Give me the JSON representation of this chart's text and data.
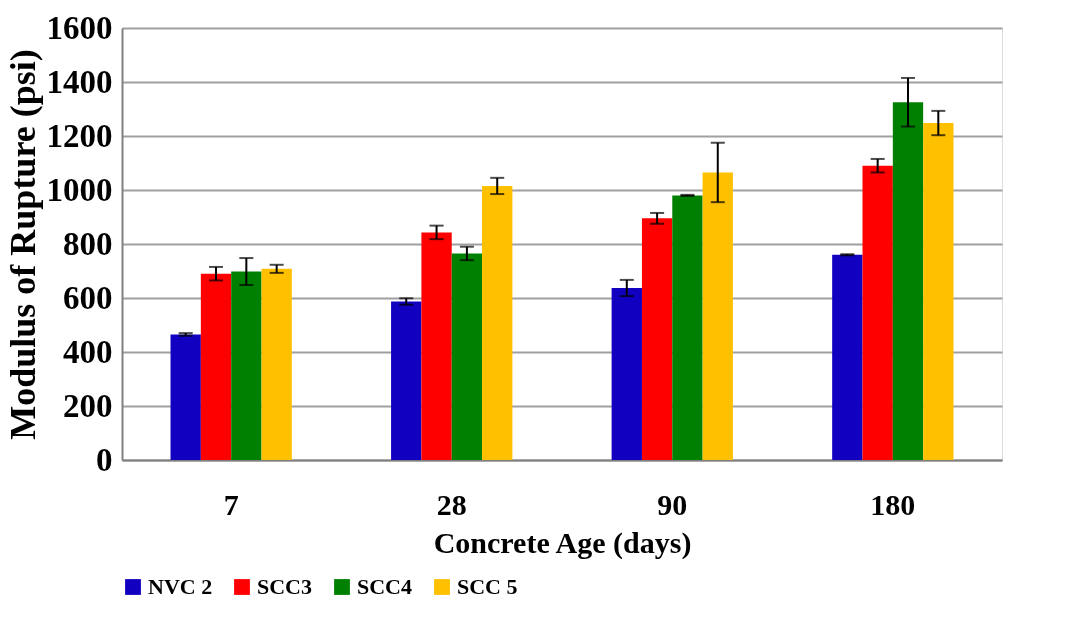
{
  "chart_data": {
    "type": "bar",
    "xlabel": "Concrete Age (days)",
    "ylabel": "Modulus of Rupture (psi)",
    "categories": [
      "7",
      "28",
      "90",
      "180"
    ],
    "series": [
      {
        "name": "NVC 2",
        "color": "#1100c0",
        "values": [
          465,
          587,
          637,
          760
        ],
        "errors": [
          5,
          12,
          30,
          2
        ]
      },
      {
        "name": "SCC3",
        "color": "#ff0000",
        "values": [
          690,
          843,
          895,
          1090
        ],
        "errors": [
          25,
          25,
          20,
          25
        ]
      },
      {
        "name": "SCC4",
        "color": "#008000",
        "values": [
          698,
          765,
          980,
          1325
        ],
        "errors": [
          50,
          25,
          2,
          90
        ]
      },
      {
        "name": "SCC 5",
        "color": "#ffc000",
        "values": [
          708,
          1015,
          1065,
          1248
        ],
        "errors": [
          15,
          30,
          110,
          45
        ]
      }
    ],
    "ylim": [
      0,
      1600
    ],
    "yticks": [
      0,
      200,
      400,
      600,
      800,
      1000,
      1200,
      1400,
      1600
    ],
    "grid": "y",
    "legend": "bottom"
  }
}
